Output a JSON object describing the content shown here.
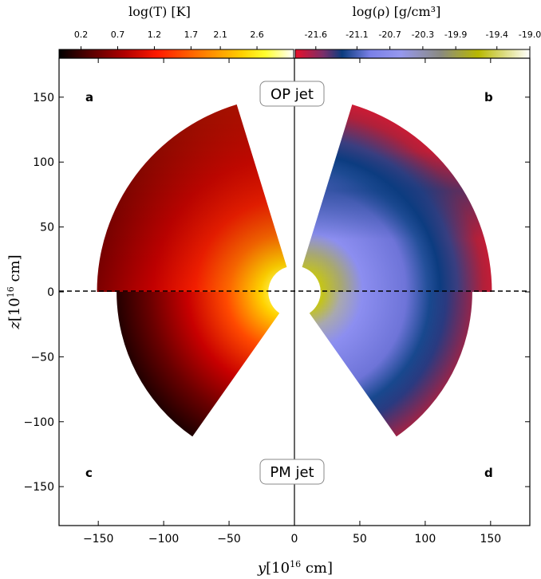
{
  "chart_data": {
    "type": "heatmap",
    "xlabel": "y[10^16 cm]",
    "ylabel": "z[10^16 cm]",
    "xlim": [
      -180,
      180
    ],
    "ylim": [
      -180,
      180
    ],
    "x_ticks": [
      -150,
      -100,
      -50,
      0,
      50,
      100,
      150
    ],
    "y_ticks": [
      150,
      100,
      50,
      0,
      -50,
      -100,
      -150
    ],
    "panels": [
      {
        "id": "a",
        "quantity": "log(T)",
        "region": "y<0, z>0",
        "r_inner": 20,
        "r_outer": 151,
        "angle_from_z_axis_deg": [
          17,
          90
        ]
      },
      {
        "id": "b",
        "quantity": "log(rho)",
        "region": "y>0, z>0",
        "r_inner": 20,
        "r_outer": 151,
        "angle_from_z_axis_deg": [
          17,
          90
        ]
      },
      {
        "id": "c",
        "quantity": "log(T)",
        "region": "y<0, z<0",
        "r_inner": 20,
        "r_outer": 136,
        "angle_from_z_axis_deg": [
          35,
          90
        ]
      },
      {
        "id": "d",
        "quantity": "log(rho)",
        "region": "y>0, z<0",
        "r_inner": 20,
        "r_outer": 136,
        "angle_from_z_axis_deg": [
          35,
          90
        ]
      }
    ],
    "annotations": [
      "OP jet",
      "PM jet"
    ],
    "colorbars": [
      {
        "label": "log(T) [K]",
        "ticks": [
          "0.2",
          "0.7",
          "1.2",
          "1.7",
          "2.1",
          "2.6"
        ],
        "range": [
          -0.1,
          3.1
        ],
        "colors": [
          "#000000",
          "#550000",
          "#b00000",
          "#ff1a00",
          "#ff8000",
          "#ffd000",
          "#ffff30",
          "#ffffff"
        ]
      },
      {
        "label": "log(ρ) [g/cm³]",
        "ticks": [
          "-21.6",
          "-21.1",
          "-20.7",
          "-20.3",
          "-19.9",
          "-19.4",
          "-19.0"
        ],
        "range": [
          -21.85,
          -19.0
        ],
        "colors": [
          "#e8102a",
          "#7a2f6a",
          "#0b3c7e",
          "#7a80e8",
          "#9698ee",
          "#8a8a80",
          "#b8b800",
          "#ffffff"
        ]
      }
    ]
  },
  "labels": {
    "cbar_T": "log(T) [K]",
    "cbar_rho": "log(ρ) [g/cm³]",
    "op_jet": "OP jet",
    "pm_jet": "PM jet",
    "panel_a": "a",
    "panel_b": "b",
    "panel_c": "c",
    "panel_d": "d",
    "ylabel_main": "z",
    "ylabel_unit": "[10",
    "ylabel_exp": "16",
    "ylabel_end": " cm]",
    "xlabel_main": "y",
    "xlabel_unit": "[10",
    "xlabel_exp": "16",
    "xlabel_end": " cm]"
  },
  "colors": {
    "frame": "#000000",
    "background": "#ffffff"
  }
}
